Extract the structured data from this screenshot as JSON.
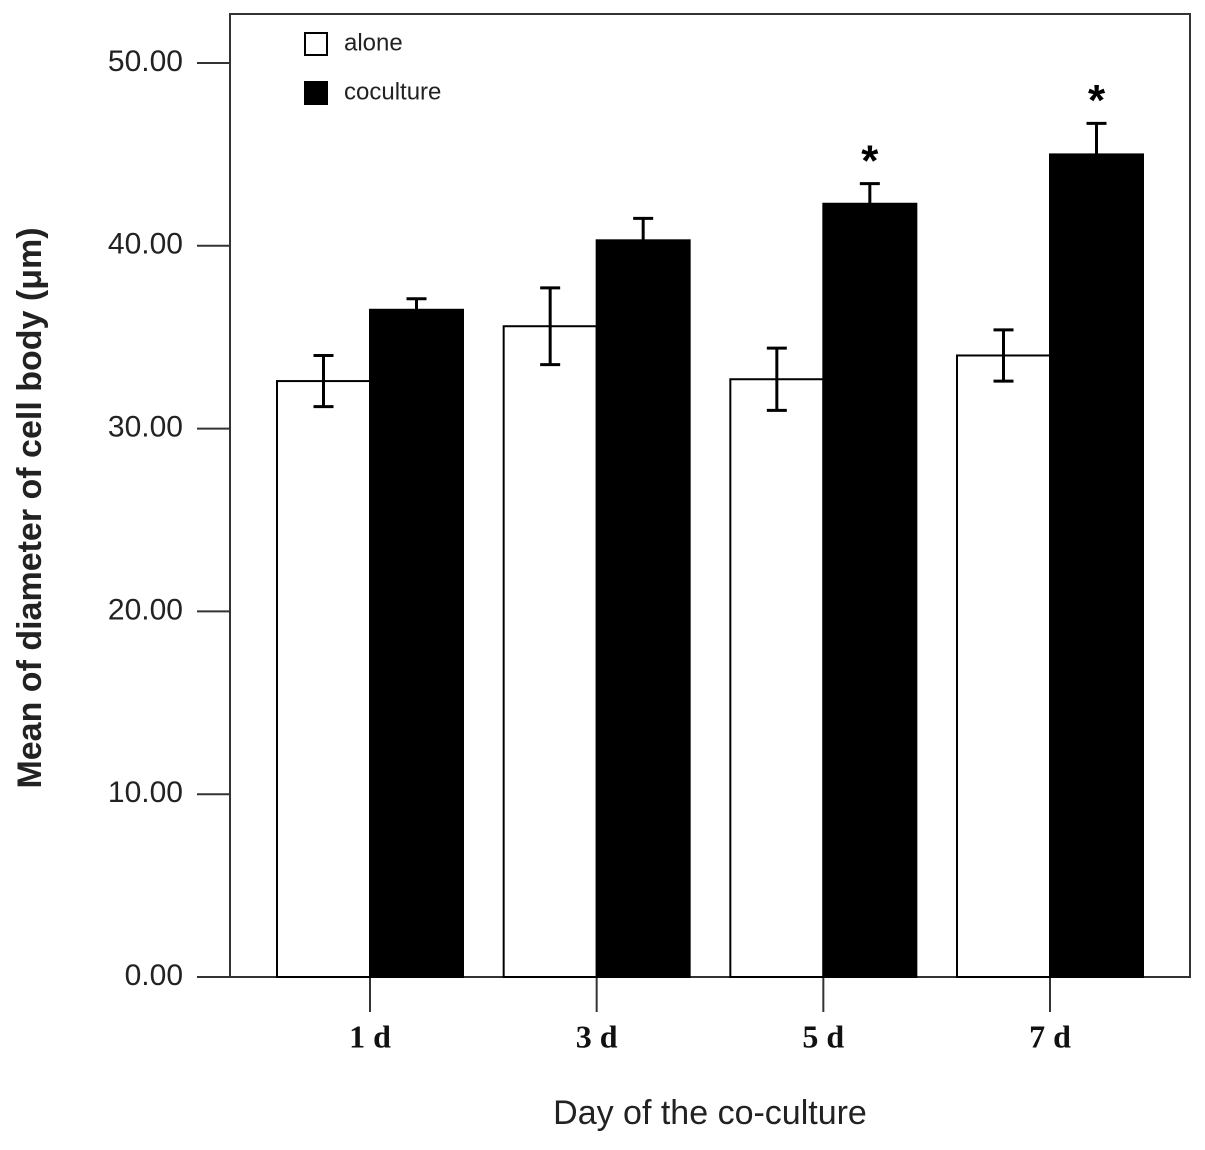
{
  "chart_data": {
    "type": "bar",
    "x_label": "Day of the co-culture",
    "y_label": "Mean of diameter of cell body (μm)",
    "categories": [
      "1 d",
      "3 d",
      "5 d",
      "7 d"
    ],
    "series": [
      {
        "name": "alone",
        "color": "#ffffff",
        "values": [
          32.6,
          35.6,
          32.7,
          34.0
        ],
        "errors": [
          1.4,
          2.1,
          1.7,
          1.4
        ]
      },
      {
        "name": "coculture",
        "color": "#000000",
        "values": [
          36.5,
          40.3,
          42.3,
          45.0
        ],
        "errors": [
          0.6,
          1.2,
          1.1,
          1.7
        ],
        "significance": [
          null,
          null,
          "*",
          "*"
        ]
      }
    ],
    "ylim": [
      0,
      50
    ],
    "yticks": [
      {
        "value": 0,
        "label": "0.00"
      },
      {
        "value": 10,
        "label": "10.00"
      },
      {
        "value": 20,
        "label": "20.00"
      },
      {
        "value": 30,
        "label": "30.00"
      },
      {
        "value": 40,
        "label": "40.00"
      },
      {
        "value": 50,
        "label": "50.00"
      }
    ],
    "legend": "upper left"
  }
}
